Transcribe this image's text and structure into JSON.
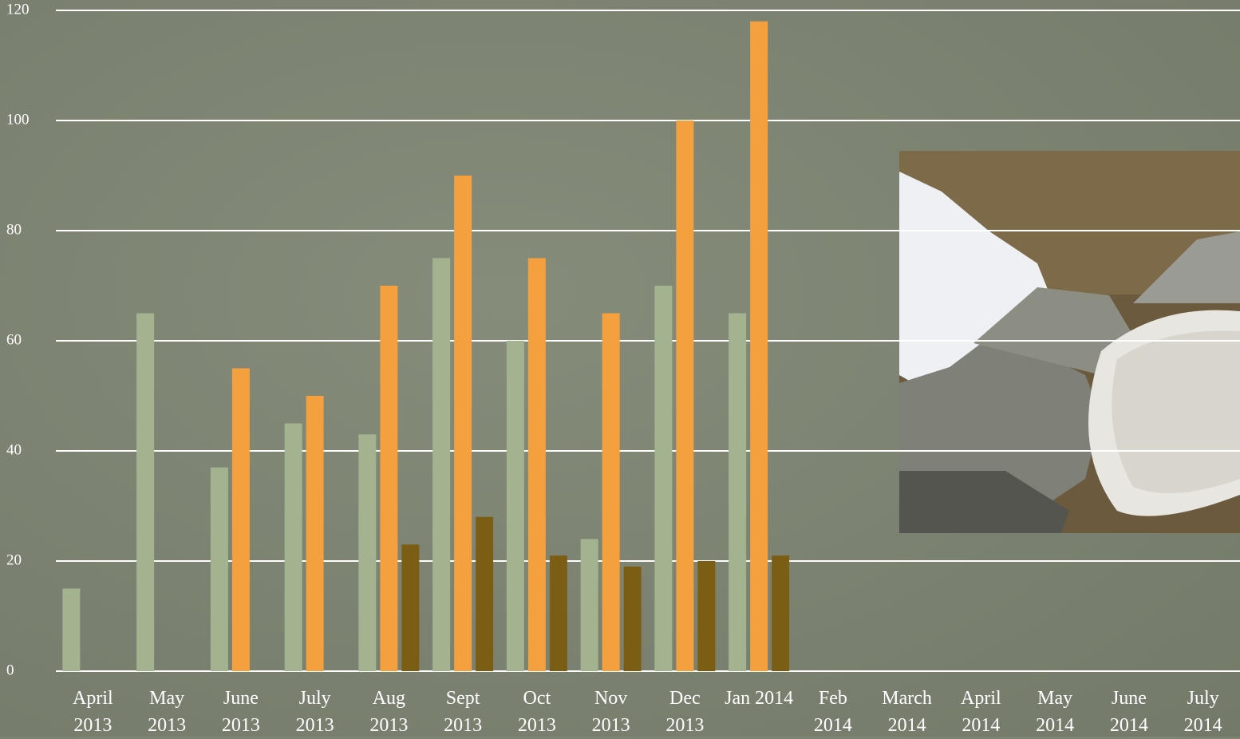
{
  "chart_data": {
    "type": "bar",
    "categories": [
      "April\n2013",
      "May\n2013",
      "June\n2013",
      "July\n2013",
      "Aug\n2013",
      "Sept\n2013",
      "Oct\n2013",
      "Nov\n2013",
      "Dec\n2013",
      "Jan 2014",
      "Feb\n2014",
      "March\n2014",
      "April\n2014",
      "May\n2014",
      "June\n2014",
      "July\n2014"
    ],
    "series": [
      {
        "color": "#a3b38f",
        "values": [
          15,
          65,
          37,
          45,
          43,
          75,
          60,
          24,
          70,
          65,
          null,
          null,
          null,
          null,
          null,
          null
        ]
      },
      {
        "color": "#f4a03f",
        "values": [
          null,
          null,
          55,
          50,
          70,
          90,
          75,
          65,
          100,
          118,
          null,
          null,
          null,
          null,
          null,
          null
        ]
      },
      {
        "color": "#7b5e14",
        "values": [
          null,
          null,
          null,
          null,
          23,
          28,
          21,
          19,
          20,
          21,
          null,
          null,
          null,
          null,
          null,
          null
        ]
      }
    ],
    "ylim": [
      0,
      120
    ],
    "yticks": [
      0,
      20,
      40,
      60,
      80,
      100,
      120
    ],
    "grid": true
  }
}
